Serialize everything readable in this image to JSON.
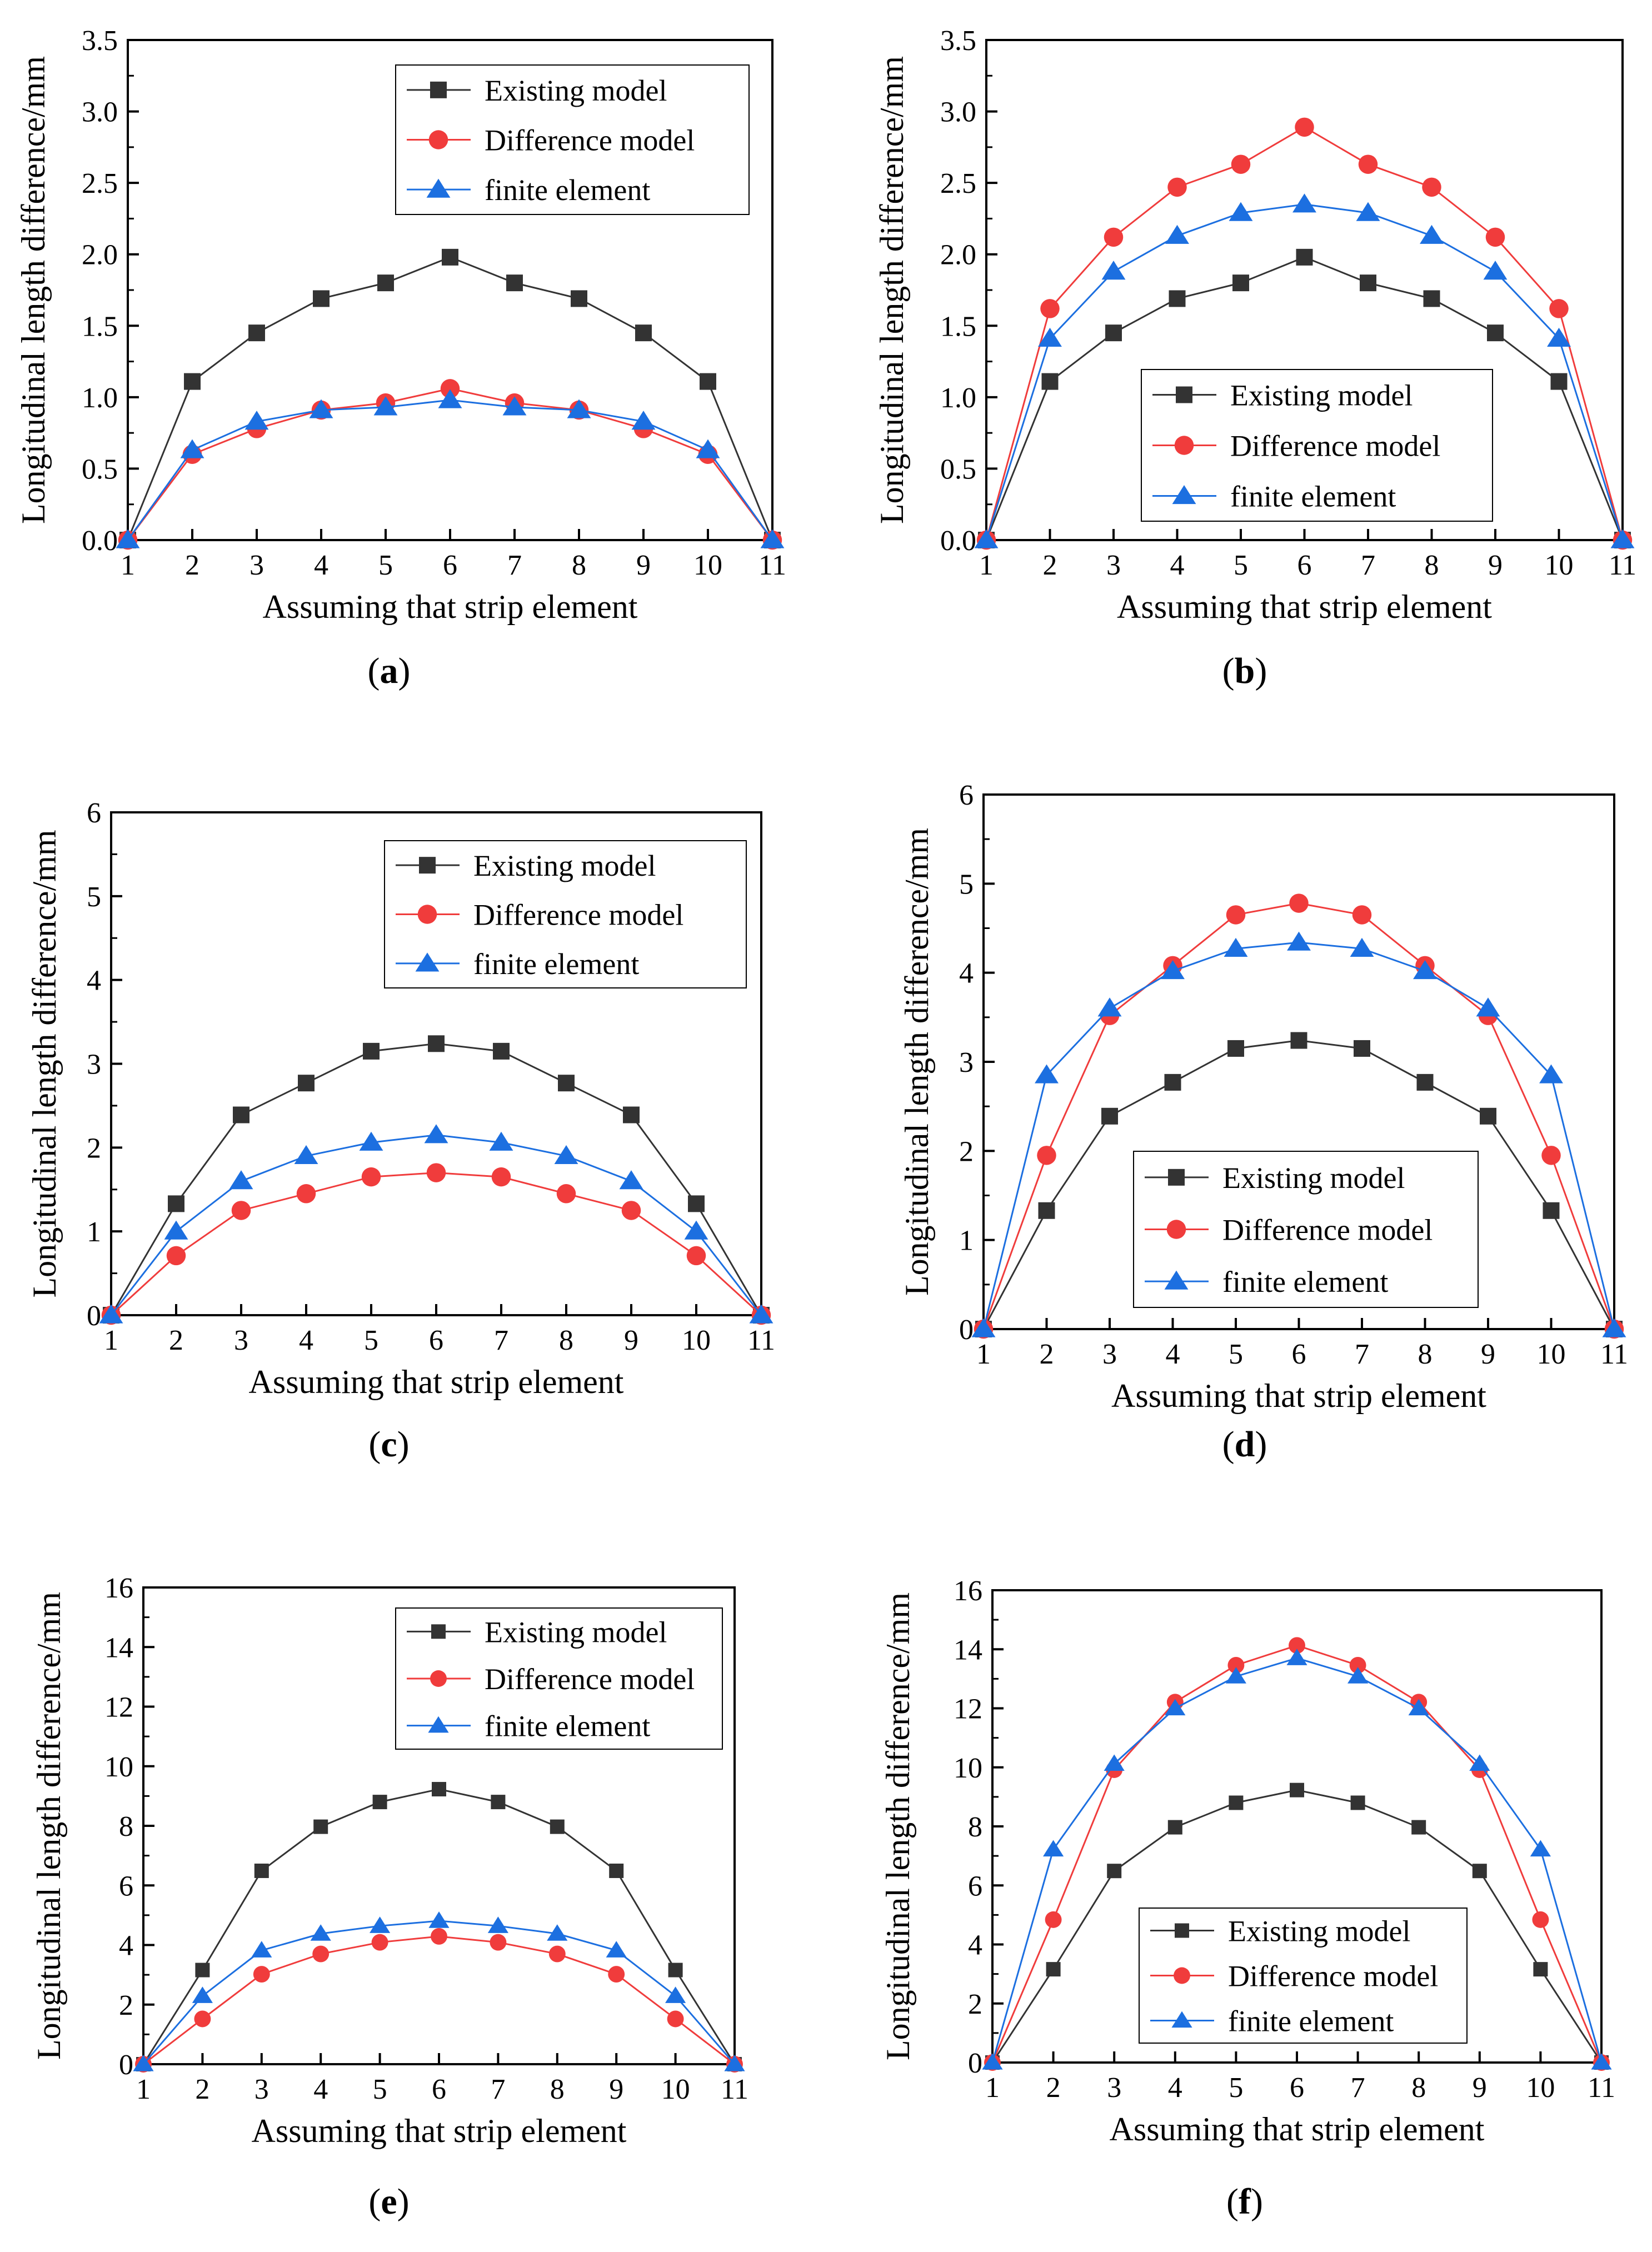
{
  "figure": {
    "panel_labels": [
      {
        "open": "(",
        "letter": "a",
        "close": ")"
      },
      {
        "open": "(",
        "letter": "b",
        "close": ")"
      },
      {
        "open": "(",
        "letter": "c",
        "close": ")"
      },
      {
        "open": "(",
        "letter": "d",
        "close": ")"
      },
      {
        "open": "(",
        "letter": "e",
        "close": ")"
      },
      {
        "open": "(",
        "letter": "f",
        "close": ")"
      }
    ]
  },
  "colors": {
    "existing": "#333333",
    "difference": "#f03c3c",
    "fe": "#1c6fe0",
    "axis": "#000000"
  },
  "chart_data": [
    {
      "type": "line",
      "panel": "a",
      "title": "",
      "xlabel": "Assuming that strip element",
      "ylabel": "Longitudinal length difference/mm",
      "x": [
        1,
        2,
        3,
        4,
        5,
        6,
        7,
        8,
        9,
        10,
        11
      ],
      "xticks": [
        "1",
        "2",
        "3",
        "4",
        "5",
        "6",
        "7",
        "8",
        "9",
        "10",
        "11"
      ],
      "ylim": [
        0,
        3.5
      ],
      "yticks": [
        "0.0",
        "0.5",
        "1.0",
        "1.5",
        "2.0",
        "2.5",
        "3.0",
        "3.5"
      ],
      "legend_position": "top-right",
      "series": [
        {
          "name": "Existing model",
          "marker": "square",
          "values": [
            0,
            1.11,
            1.45,
            1.69,
            1.8,
            1.98,
            1.8,
            1.69,
            1.45,
            1.11,
            0
          ]
        },
        {
          "name": "Difference model",
          "marker": "circle",
          "values": [
            0,
            0.6,
            0.78,
            0.91,
            0.96,
            1.06,
            0.96,
            0.91,
            0.78,
            0.6,
            0
          ]
        },
        {
          "name": "finite element",
          "marker": "triangle",
          "values": [
            0,
            0.63,
            0.83,
            0.91,
            0.93,
            0.98,
            0.93,
            0.91,
            0.83,
            0.63,
            0
          ]
        }
      ]
    },
    {
      "type": "line",
      "panel": "b",
      "title": "",
      "xlabel": "Assuming that strip element",
      "ylabel": "Longitudinal length difference/mm",
      "x": [
        1,
        2,
        3,
        4,
        5,
        6,
        7,
        8,
        9,
        10,
        11
      ],
      "xticks": [
        "1",
        "2",
        "3",
        "4",
        "5",
        "6",
        "7",
        "8",
        "9",
        "10",
        "11"
      ],
      "ylim": [
        0,
        3.5
      ],
      "yticks": [
        "0.0",
        "0.5",
        "1.0",
        "1.5",
        "2.0",
        "2.5",
        "3.0",
        "3.5"
      ],
      "legend_position": "bottom-center",
      "series": [
        {
          "name": "Existing model",
          "marker": "square",
          "values": [
            0,
            1.11,
            1.45,
            1.69,
            1.8,
            1.98,
            1.8,
            1.69,
            1.45,
            1.11,
            0
          ]
        },
        {
          "name": "Difference model",
          "marker": "circle",
          "values": [
            0,
            1.62,
            2.12,
            2.47,
            2.63,
            2.89,
            2.63,
            2.47,
            2.12,
            1.62,
            0
          ]
        },
        {
          "name": "finite element",
          "marker": "triangle",
          "values": [
            0,
            1.41,
            1.88,
            2.13,
            2.29,
            2.35,
            2.29,
            2.13,
            1.88,
            1.41,
            0
          ]
        }
      ]
    },
    {
      "type": "line",
      "panel": "c",
      "title": "",
      "xlabel": "Assuming that strip element",
      "ylabel": "Longitudinal length difference/mm",
      "x": [
        1,
        2,
        3,
        4,
        5,
        6,
        7,
        8,
        9,
        10,
        11
      ],
      "xticks": [
        "1",
        "2",
        "3",
        "4",
        "5",
        "6",
        "7",
        "8",
        "9",
        "10",
        "11"
      ],
      "ylim": [
        0,
        6
      ],
      "yticks": [
        "0",
        "1",
        "2",
        "3",
        "4",
        "5",
        "6"
      ],
      "legend_position": "top-right",
      "series": [
        {
          "name": "Existing model",
          "marker": "square",
          "values": [
            0,
            1.33,
            2.39,
            2.77,
            3.15,
            3.24,
            3.15,
            2.77,
            2.39,
            1.33,
            0
          ]
        },
        {
          "name": "Difference model",
          "marker": "circle",
          "values": [
            0,
            0.71,
            1.25,
            1.45,
            1.65,
            1.7,
            1.65,
            1.45,
            1.25,
            0.71,
            0
          ]
        },
        {
          "name": "finite element",
          "marker": "triangle",
          "values": [
            0,
            1.0,
            1.6,
            1.9,
            2.06,
            2.15,
            2.06,
            1.9,
            1.6,
            1.0,
            0
          ]
        }
      ]
    },
    {
      "type": "line",
      "panel": "d",
      "title": "",
      "xlabel": "Assuming that strip element",
      "ylabel": "Longitudinal length difference/mm",
      "x": [
        1,
        2,
        3,
        4,
        5,
        6,
        7,
        8,
        9,
        10,
        11
      ],
      "xticks": [
        "1",
        "2",
        "3",
        "4",
        "5",
        "6",
        "7",
        "8",
        "9",
        "10",
        "11"
      ],
      "ylim": [
        0,
        6
      ],
      "yticks": [
        "0",
        "1",
        "2",
        "3",
        "4",
        "5",
        "6"
      ],
      "legend_position": "bottom-center",
      "series": [
        {
          "name": "Existing model",
          "marker": "square",
          "values": [
            0,
            1.33,
            2.39,
            2.77,
            3.15,
            3.24,
            3.15,
            2.77,
            2.39,
            1.33,
            0
          ]
        },
        {
          "name": "Difference model",
          "marker": "circle",
          "values": [
            0,
            1.95,
            3.52,
            4.08,
            4.65,
            4.78,
            4.65,
            4.08,
            3.52,
            1.95,
            0
          ]
        },
        {
          "name": "finite element",
          "marker": "triangle",
          "values": [
            0,
            2.85,
            3.6,
            4.02,
            4.27,
            4.34,
            4.27,
            4.02,
            3.6,
            2.85,
            0
          ]
        }
      ]
    },
    {
      "type": "line",
      "panel": "e",
      "title": "",
      "xlabel": "Assuming that strip element",
      "ylabel": "Longitudinal length difference/mm",
      "x": [
        1,
        2,
        3,
        4,
        5,
        6,
        7,
        8,
        9,
        10,
        11
      ],
      "xticks": [
        "1",
        "2",
        "3",
        "4",
        "5",
        "6",
        "7",
        "8",
        "9",
        "10",
        "11"
      ],
      "ylim": [
        0,
        16
      ],
      "yticks": [
        "0",
        "2",
        "4",
        "6",
        "8",
        "10",
        "12",
        "14",
        "16"
      ],
      "legend_position": "top-right",
      "series": [
        {
          "name": "Existing model",
          "marker": "square",
          "values": [
            0,
            3.16,
            6.49,
            7.97,
            8.8,
            9.23,
            8.8,
            7.97,
            6.49,
            3.16,
            0
          ]
        },
        {
          "name": "Difference model",
          "marker": "circle",
          "values": [
            0,
            1.52,
            3.02,
            3.7,
            4.09,
            4.29,
            4.09,
            3.7,
            3.02,
            1.52,
            0
          ]
        },
        {
          "name": "finite element",
          "marker": "triangle",
          "values": [
            0,
            2.29,
            3.82,
            4.38,
            4.64,
            4.81,
            4.64,
            4.38,
            3.82,
            2.29,
            0
          ]
        }
      ]
    },
    {
      "type": "line",
      "panel": "f",
      "title": "",
      "xlabel": "Assuming that strip element",
      "ylabel": "Longitudinal length difference/mm",
      "x": [
        1,
        2,
        3,
        4,
        5,
        6,
        7,
        8,
        9,
        10,
        11
      ],
      "xticks": [
        "1",
        "2",
        "3",
        "4",
        "5",
        "6",
        "7",
        "8",
        "9",
        "10",
        "11"
      ],
      "ylim": [
        0,
        16
      ],
      "yticks": [
        "0",
        "2",
        "4",
        "6",
        "8",
        "10",
        "12",
        "14",
        "16"
      ],
      "legend_position": "bottom-center",
      "series": [
        {
          "name": "Existing model",
          "marker": "square",
          "values": [
            0,
            3.16,
            6.49,
            7.97,
            8.8,
            9.23,
            8.8,
            7.97,
            6.49,
            3.16,
            0
          ]
        },
        {
          "name": "Difference model",
          "marker": "circle",
          "values": [
            0,
            4.84,
            9.92,
            12.21,
            13.46,
            14.13,
            13.46,
            12.21,
            9.92,
            4.84,
            0
          ]
        },
        {
          "name": "finite element",
          "marker": "triangle",
          "values": [
            0,
            7.22,
            10.12,
            12.0,
            13.08,
            13.7,
            13.08,
            12.0,
            10.12,
            7.22,
            0
          ]
        }
      ]
    }
  ]
}
